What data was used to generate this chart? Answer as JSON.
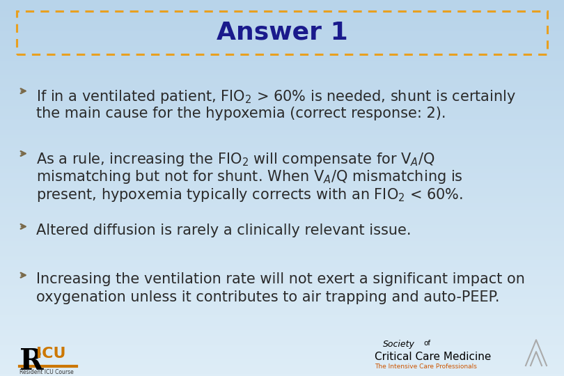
{
  "title": "Answer 1",
  "title_color": "#1a1a8c",
  "title_fontsize": 26,
  "background_color": "#ccdff0",
  "background_color_bottom": "#e8f2fa",
  "border_color": "#E8A020",
  "bullet_color": "#7a6a4a",
  "text_color": "#2a2a2a",
  "text_fontsize": 15,
  "figsize": [
    8.1,
    5.4
  ],
  "dpi": 100,
  "bullet_lines": [
    [
      "If in a ventilated patient, FIO$_2$ > 60% is needed, shunt is certainly",
      "the main cause for the hypoxemia (correct response: 2)."
    ],
    [
      "As a rule, increasing the FIO$_2$ will compensate for V$_A$/Q",
      "mismatching but not for shunt. When V$_A$/Q mismatching is",
      "present, hypoxemia typically corrects with an FIO$_2$ < 60%."
    ],
    [
      "Altered diffusion is rarely a clinically relevant issue."
    ],
    [
      "Increasing the ventilation rate will not exert a significant impact on",
      "oxygenation unless it contributes to air trapping and auto-PEEP."
    ]
  ]
}
